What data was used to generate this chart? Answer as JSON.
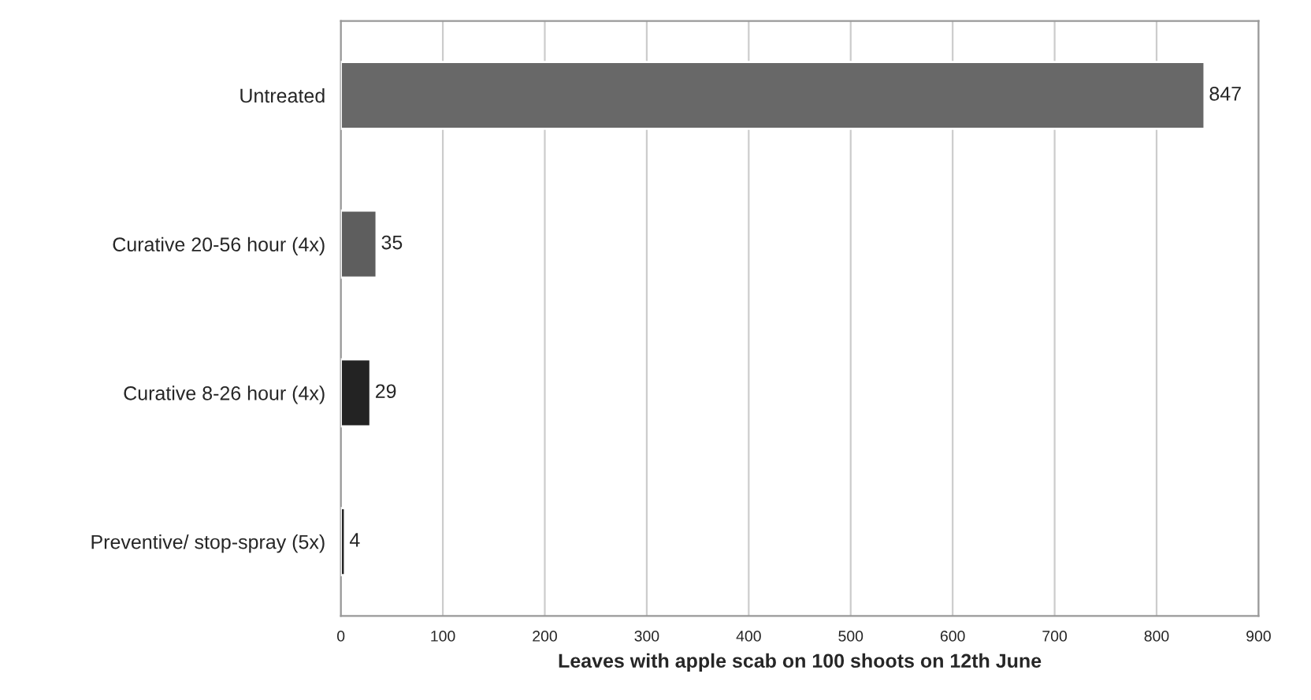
{
  "chart_data": {
    "type": "bar",
    "orientation": "horizontal",
    "categories": [
      "Untreated",
      "Curative 20-56 hour (4x)",
      "Curative 8-26 hour (4x)",
      "Preventive/ stop-spray (5x)"
    ],
    "values": [
      847,
      35,
      29,
      4
    ],
    "colors": [
      "#686868",
      "#5e5e5e",
      "#232323",
      "#232323"
    ],
    "xlabel": "Leaves with apple scab on 100 shoots on 12th June",
    "xlim": [
      0,
      900
    ],
    "xticks": [
      0,
      100,
      200,
      300,
      400,
      500,
      600,
      700,
      800,
      900
    ],
    "grid": "x",
    "data_labels": true
  }
}
